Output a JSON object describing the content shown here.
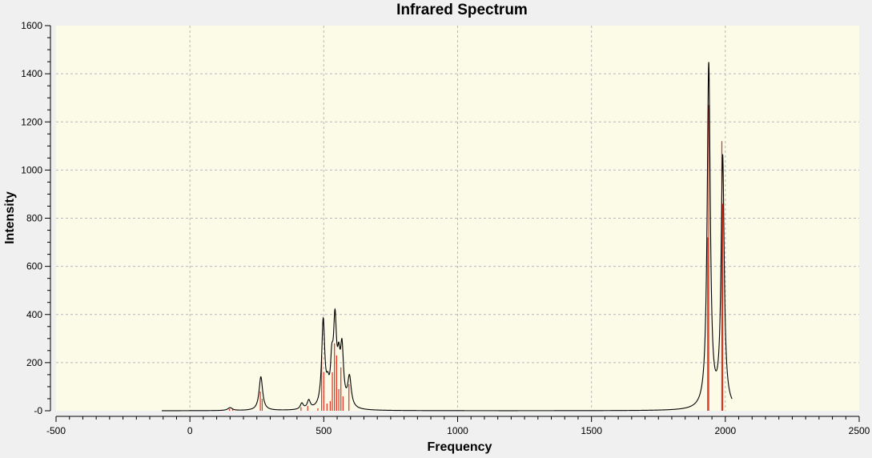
{
  "chart_data": {
    "type": "line",
    "title": "Infrared Spectrum",
    "xlabel": "Frequency",
    "ylabel": "Intensity",
    "xlim": [
      -500,
      2500
    ],
    "ylim": [
      0,
      1600
    ],
    "x_ticks": [
      -500,
      0,
      500,
      1000,
      1500,
      2000,
      2500
    ],
    "x_tick_labels": [
      "-500",
      "0",
      "500",
      "1000",
      "1500",
      "2000",
      "2500"
    ],
    "y_ticks": [
      0,
      200,
      400,
      600,
      800,
      1000,
      1200,
      1400,
      1600
    ],
    "y_tick_labels": [
      "-0",
      "200",
      "400",
      "600",
      "800",
      "1000",
      "1200",
      "1400",
      "1600"
    ],
    "grid": true,
    "colors": {
      "background": "#fbfbe8",
      "frame": "#f0f0f0",
      "spectrum": "#000000",
      "sticks": "#e0301e",
      "grid": "#b8b8b8"
    },
    "series": [
      {
        "type": "line",
        "x_range": [
          -105,
          2025
        ],
        "peaks": [
          {
            "x": 150,
            "y": 12,
            "w": 10
          },
          {
            "x": 265,
            "y": 140,
            "w": 8
          },
          {
            "x": 418,
            "y": 25,
            "w": 7
          },
          {
            "x": 444,
            "y": 35,
            "w": 7
          },
          {
            "x": 498,
            "y": 360,
            "w": 7
          },
          {
            "x": 515,
            "y": 60,
            "w": 6
          },
          {
            "x": 530,
            "y": 150,
            "w": 6
          },
          {
            "x": 542,
            "y": 340,
            "w": 7
          },
          {
            "x": 556,
            "y": 140,
            "w": 6
          },
          {
            "x": 568,
            "y": 230,
            "w": 7
          },
          {
            "x": 596,
            "y": 125,
            "w": 8
          },
          {
            "x": 1938,
            "y": 1430,
            "w": 7
          },
          {
            "x": 1990,
            "y": 1040,
            "w": 7
          }
        ]
      },
      {
        "type": "bar",
        "x": [
          148,
          160,
          263,
          270,
          415,
          440,
          478,
          492,
          500,
          512,
          524,
          532,
          540,
          548,
          556,
          564,
          572,
          594,
          1934,
          1938,
          1987,
          1990
        ],
        "values": [
          8,
          6,
          80,
          50,
          15,
          20,
          10,
          230,
          160,
          30,
          40,
          160,
          280,
          230,
          90,
          180,
          60,
          110,
          720,
          1270,
          1120,
          860
        ]
      }
    ]
  }
}
